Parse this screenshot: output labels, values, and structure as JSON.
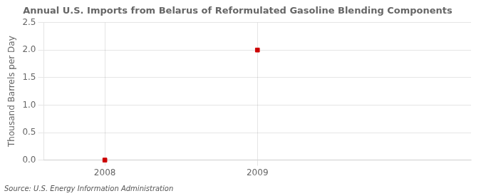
{
  "chart_data": {
    "type": "scatter",
    "title": "Annual U.S. Imports from Belarus of Reformulated Gasoline Blending Components",
    "y_label": "Thousand Barrels per Day",
    "annotations": [
      "Source: U.S. Energy Information Administration"
    ],
    "x": [
      2008,
      2009
    ],
    "values": [
      0,
      2.0
    ],
    "color": "#cc0000",
    "marker": "square",
    "xlim": [
      2007.6,
      2010.4
    ],
    "xticks": [
      2008,
      2009
    ],
    "ylim": [
      0,
      2.5
    ],
    "yticks": [
      {
        "value": 0.0,
        "label": "0.0"
      },
      {
        "value": 0.5,
        "label": "0.5"
      },
      {
        "value": 1.0,
        "label": "1.0"
      },
      {
        "value": 1.5,
        "label": "1.5"
      },
      {
        "value": 2.0,
        "label": "2.0"
      },
      {
        "value": 2.5,
        "label": "2.5"
      }
    ],
    "grid": true
  }
}
